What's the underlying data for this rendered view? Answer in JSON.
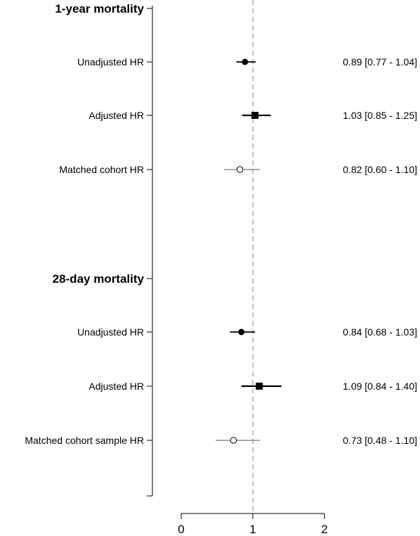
{
  "chart_data": {
    "type": "forest",
    "xlim": [
      0,
      2
    ],
    "x_ticks": [
      "0",
      "1",
      "2"
    ],
    "reference_line": 1,
    "groups": [
      {
        "title": "1-year mortality",
        "rows": [
          {
            "label": "Unadjusted HR",
            "est": 0.89,
            "lo": 0.77,
            "hi": 1.04,
            "text": "0.89 [0.77 - 1.04]",
            "marker": "filled-circle"
          },
          {
            "label": "Adjusted HR",
            "est": 1.03,
            "lo": 0.85,
            "hi": 1.25,
            "text": "1.03 [0.85 - 1.25]",
            "marker": "filled-square"
          },
          {
            "label": "Matched cohort HR",
            "est": 0.82,
            "lo": 0.6,
            "hi": 1.1,
            "text": "0.82 [0.60 - 1.10]",
            "marker": "open-circle"
          }
        ]
      },
      {
        "title": "28-day mortality",
        "rows": [
          {
            "label": "Unadjusted HR",
            "est": 0.84,
            "lo": 0.68,
            "hi": 1.03,
            "text": "0.84 [0.68 - 1.03]",
            "marker": "filled-circle"
          },
          {
            "label": "Adjusted HR",
            "est": 1.09,
            "lo": 0.84,
            "hi": 1.4,
            "text": "1.09 [0.84 - 1.40]",
            "marker": "filled-square"
          },
          {
            "label": "Matched cohort sample HR",
            "est": 0.73,
            "lo": 0.48,
            "hi": 1.1,
            "text": "0.73 [0.48 - 1.10]",
            "marker": "open-circle"
          }
        ]
      }
    ]
  }
}
